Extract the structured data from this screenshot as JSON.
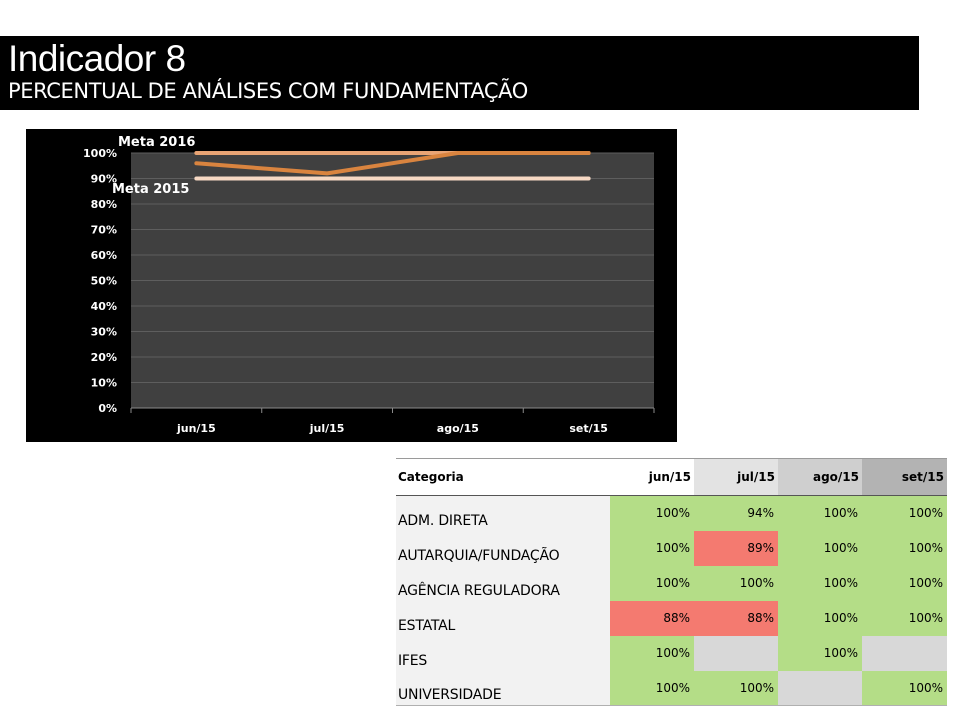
{
  "header": {
    "title": "Indicador 8",
    "subtitle": "PERCENTUAL DE ANÁLISES COM FUNDAMENTAÇÃO"
  },
  "chart_data": {
    "type": "line",
    "categories": [
      "jun/15",
      "jul/15",
      "ago/15",
      "set/15"
    ],
    "y_ticks": [
      "0%",
      "10%",
      "20%",
      "30%",
      "40%",
      "50%",
      "60%",
      "70%",
      "80%",
      "90%",
      "100%"
    ],
    "ylim": [
      0,
      100
    ],
    "grid": true,
    "series": [
      {
        "values": [
          96,
          92,
          100,
          100
        ],
        "color": "#d9843f"
      },
      {
        "name": "Meta 2016",
        "values": [
          100,
          100,
          100,
          100
        ],
        "color": "#e9a474"
      },
      {
        "name": "Meta 2015",
        "values": [
          90,
          90,
          90,
          90
        ],
        "color": "#f6d8c3"
      }
    ],
    "annotations": [
      "Meta 2016",
      "Meta 2015"
    ],
    "plot_background": "#404040",
    "background": "#000000"
  },
  "table": {
    "headers": [
      "Categoria",
      "jun/15",
      "jul/15",
      "ago/15",
      "set/15"
    ],
    "rows": [
      {
        "label": "ADM. DIRETA",
        "cells": [
          {
            "value": "100%",
            "status": "green"
          },
          {
            "value": "94%",
            "status": "green"
          },
          {
            "value": "100%",
            "status": "green"
          },
          {
            "value": "100%",
            "status": "green"
          }
        ]
      },
      {
        "label": "AUTARQUIA/FUNDAÇÃO",
        "cells": [
          {
            "value": "100%",
            "status": "green"
          },
          {
            "value": "89%",
            "status": "red"
          },
          {
            "value": "100%",
            "status": "green"
          },
          {
            "value": "100%",
            "status": "green"
          }
        ]
      },
      {
        "label": "AGÊNCIA REGULADORA",
        "cells": [
          {
            "value": "100%",
            "status": "green"
          },
          {
            "value": "100%",
            "status": "green"
          },
          {
            "value": "100%",
            "status": "green"
          },
          {
            "value": "100%",
            "status": "green"
          }
        ]
      },
      {
        "label": "ESTATAL",
        "cells": [
          {
            "value": "88%",
            "status": "red"
          },
          {
            "value": "88%",
            "status": "red"
          },
          {
            "value": "100%",
            "status": "green"
          },
          {
            "value": "100%",
            "status": "green"
          }
        ]
      },
      {
        "label": "IFES",
        "cells": [
          {
            "value": "100%",
            "status": "green"
          },
          {
            "value": "",
            "status": "empty"
          },
          {
            "value": "100%",
            "status": "green"
          },
          {
            "value": "",
            "status": "empty"
          }
        ]
      },
      {
        "label": "UNIVERSIDADE",
        "cells": [
          {
            "value": "100%",
            "status": "green"
          },
          {
            "value": "100%",
            "status": "green"
          },
          {
            "value": "",
            "status": "empty"
          },
          {
            "value": "100%",
            "status": "green"
          }
        ]
      }
    ],
    "status_colors": {
      "green": "#b4dd87",
      "red": "#f47a70",
      "empty": "#d8d8d8"
    }
  }
}
